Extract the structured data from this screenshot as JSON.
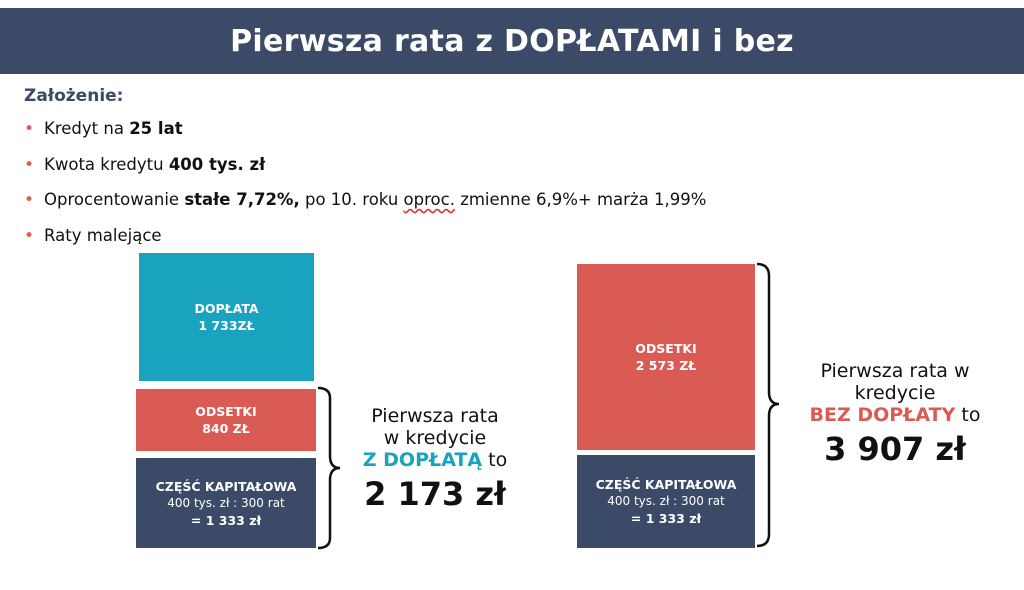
{
  "title": "Pierwsza rata z DOPŁATAMI i bez",
  "assumptions": {
    "heading": "Założenie:",
    "items": [
      {
        "pre": "Kredyt na ",
        "bold": "25 lat",
        "post": ""
      },
      {
        "pre": "Kwota kredytu ",
        "bold": "400 tys. zł",
        "post": ""
      },
      {
        "pre": "Oprocentowanie ",
        "bold": "stałe 7,72%,",
        "post_a": " po 10. roku ",
        "squiggle": "oproc.",
        "post_b": " zmienne 6,9%+ marża 1,99%"
      },
      {
        "pre": "Raty malejące",
        "bold": "",
        "post": ""
      }
    ]
  },
  "left": {
    "doplata": {
      "label": "DOPŁATA",
      "value": "1 733ZŁ"
    },
    "odsetki": {
      "label": "ODSETKI",
      "value": "840 ZŁ"
    },
    "kapital": {
      "label": "CZĘŚĆ KAPITAŁOWA",
      "line1": "400 tys. zł : 300 rat",
      "line2": "= 1 333 zł"
    },
    "caption": {
      "line1": "Pierwsza rata",
      "line2": "w kredycie",
      "highlight": "Z DOPŁATĄ",
      "suffix": " to",
      "amount": "2 173 zł"
    }
  },
  "right": {
    "odsetki": {
      "label": "ODSETKI",
      "value": "2 573 ZŁ"
    },
    "kapital": {
      "label": "CZĘŚĆ KAPITAŁOWA",
      "line1": "400 tys. zł : 300 rat",
      "line2": "= 1 333 zł"
    },
    "caption": {
      "line1": "Pierwsza rata w",
      "line2": "kredycie",
      "highlight": "BEZ DOPŁATY",
      "suffix": " to",
      "amount": "3 907 zł"
    }
  },
  "colors": {
    "header": "#3b4a66",
    "teal": "#1aa3bf",
    "red": "#d95b54",
    "navy": "#3b4a66"
  }
}
